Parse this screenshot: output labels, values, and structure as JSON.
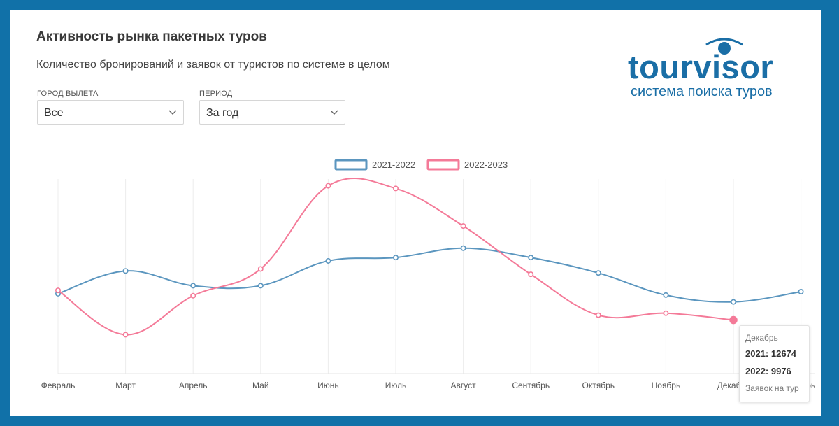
{
  "header": {
    "title": "Активность рынка пакетных туров",
    "subtitle": "Количество бронирований и заявок от туристов по системе в целом"
  },
  "filters": {
    "city": {
      "label": "ГОРОД ВЫЛЕТА",
      "value": "Все"
    },
    "period": {
      "label": "ПЕРИОД",
      "value": "За год"
    }
  },
  "logo": {
    "word": "tourvisor",
    "tagline": "система поиска туров"
  },
  "colors": {
    "blue": "#5b96bf",
    "pink": "#f47a98",
    "brand": "#1a6ea6"
  },
  "chart_data": {
    "type": "line",
    "categories": [
      "Февраль",
      "Март",
      "Апрель",
      "Май",
      "Июнь",
      "Июль",
      "Август",
      "Сентябрь",
      "Октябрь",
      "Ноябрь",
      "Декабрь",
      "Январь"
    ],
    "series": [
      {
        "name": "2021-2022",
        "values": [
          13900,
          17300,
          15100,
          15100,
          18800,
          19300,
          20700,
          19300,
          17000,
          13700,
          12674,
          14200
        ]
      },
      {
        "name": "2022-2023",
        "values": [
          14400,
          7800,
          13600,
          17600,
          30000,
          29600,
          24000,
          16800,
          10700,
          11000,
          9976,
          null
        ]
      }
    ],
    "ylim": [
      2000,
      31000
    ],
    "grid": "vertical",
    "legend": "top-center",
    "tooltip": {
      "title": "Декабрь",
      "line1": "2021: 12674",
      "line2": "2022: 9976",
      "footer": "Заявок на тур"
    }
  }
}
